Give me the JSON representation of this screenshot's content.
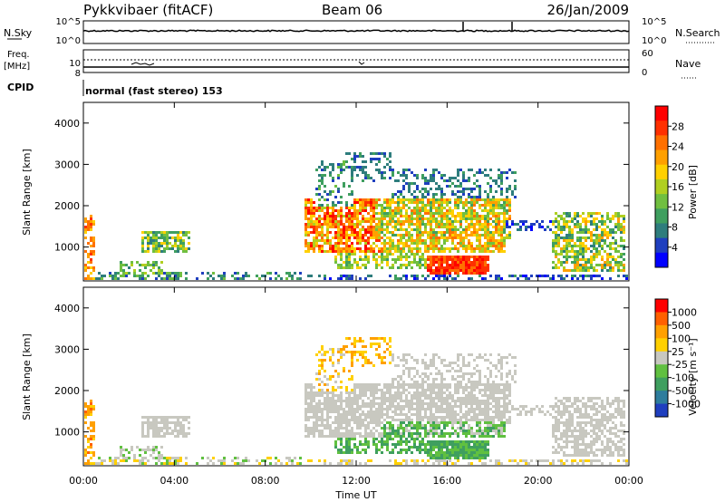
{
  "header": {
    "station": "Pykkvibaer (fitACF)",
    "beam": "Beam 06",
    "date": "26/Jan/2009"
  },
  "status_panels": {
    "nsky_label": "N.Sky",
    "nsky_ticks": [
      "10^5",
      "10^0"
    ],
    "nsearch_label": "N.Search",
    "nsearch_ticks": [
      "10^5",
      "10^0"
    ],
    "freq_label": "Freq.",
    "freq_unit": "[MHz]",
    "freq_ticks": [
      "10",
      "8"
    ],
    "nave_label": "Nave",
    "nave_ticks": [
      "60",
      "0"
    ],
    "cpid_label": "CPID",
    "cpid_value": "normal (fast stereo) 153"
  },
  "chart_data": [
    {
      "type": "heatmap",
      "name": "power",
      "ylabel": "Slant Range [km]",
      "yticks": [
        "4000",
        "3000",
        "2000",
        "1000"
      ],
      "ylim": [
        180,
        4500
      ],
      "xlim": [
        0,
        24
      ],
      "colorbar_label": "Power [dB]",
      "colorbar_ticks": [
        "28",
        "24",
        "20",
        "16",
        "12",
        "8",
        "4"
      ],
      "colorbar_colors": [
        "#0000ff",
        "#1f3fbf",
        "#2e7d7d",
        "#3f9f5f",
        "#70bf40",
        "#b0cf20",
        "#ffd000",
        "#ffa000",
        "#ff7000",
        "#ff3000",
        "#ff0000"
      ]
    },
    {
      "type": "heatmap",
      "name": "velocity",
      "xlabel": "Time UT",
      "ylabel": "Slant Range [km]",
      "yticks": [
        "4000",
        "3000",
        "2000",
        "1000"
      ],
      "xticks": [
        "00:00",
        "04:00",
        "08:00",
        "12:00",
        "16:00",
        "20:00",
        "00:00"
      ],
      "ylim": [
        180,
        4500
      ],
      "xlim": [
        0,
        24
      ],
      "colorbar_label": "Velocity [m s⁻¹]",
      "colorbar_ticks": [
        "1000",
        "500",
        "100",
        "25",
        "-25",
        "-100",
        "-500",
        "-1000"
      ],
      "colorbar_colors": [
        "#1f3fbf",
        "#2e7d9d",
        "#3f9f5f",
        "#60c040",
        "#c8c8c0",
        "#ffd000",
        "#ffa000",
        "#ff6000",
        "#ff0000"
      ]
    }
  ]
}
